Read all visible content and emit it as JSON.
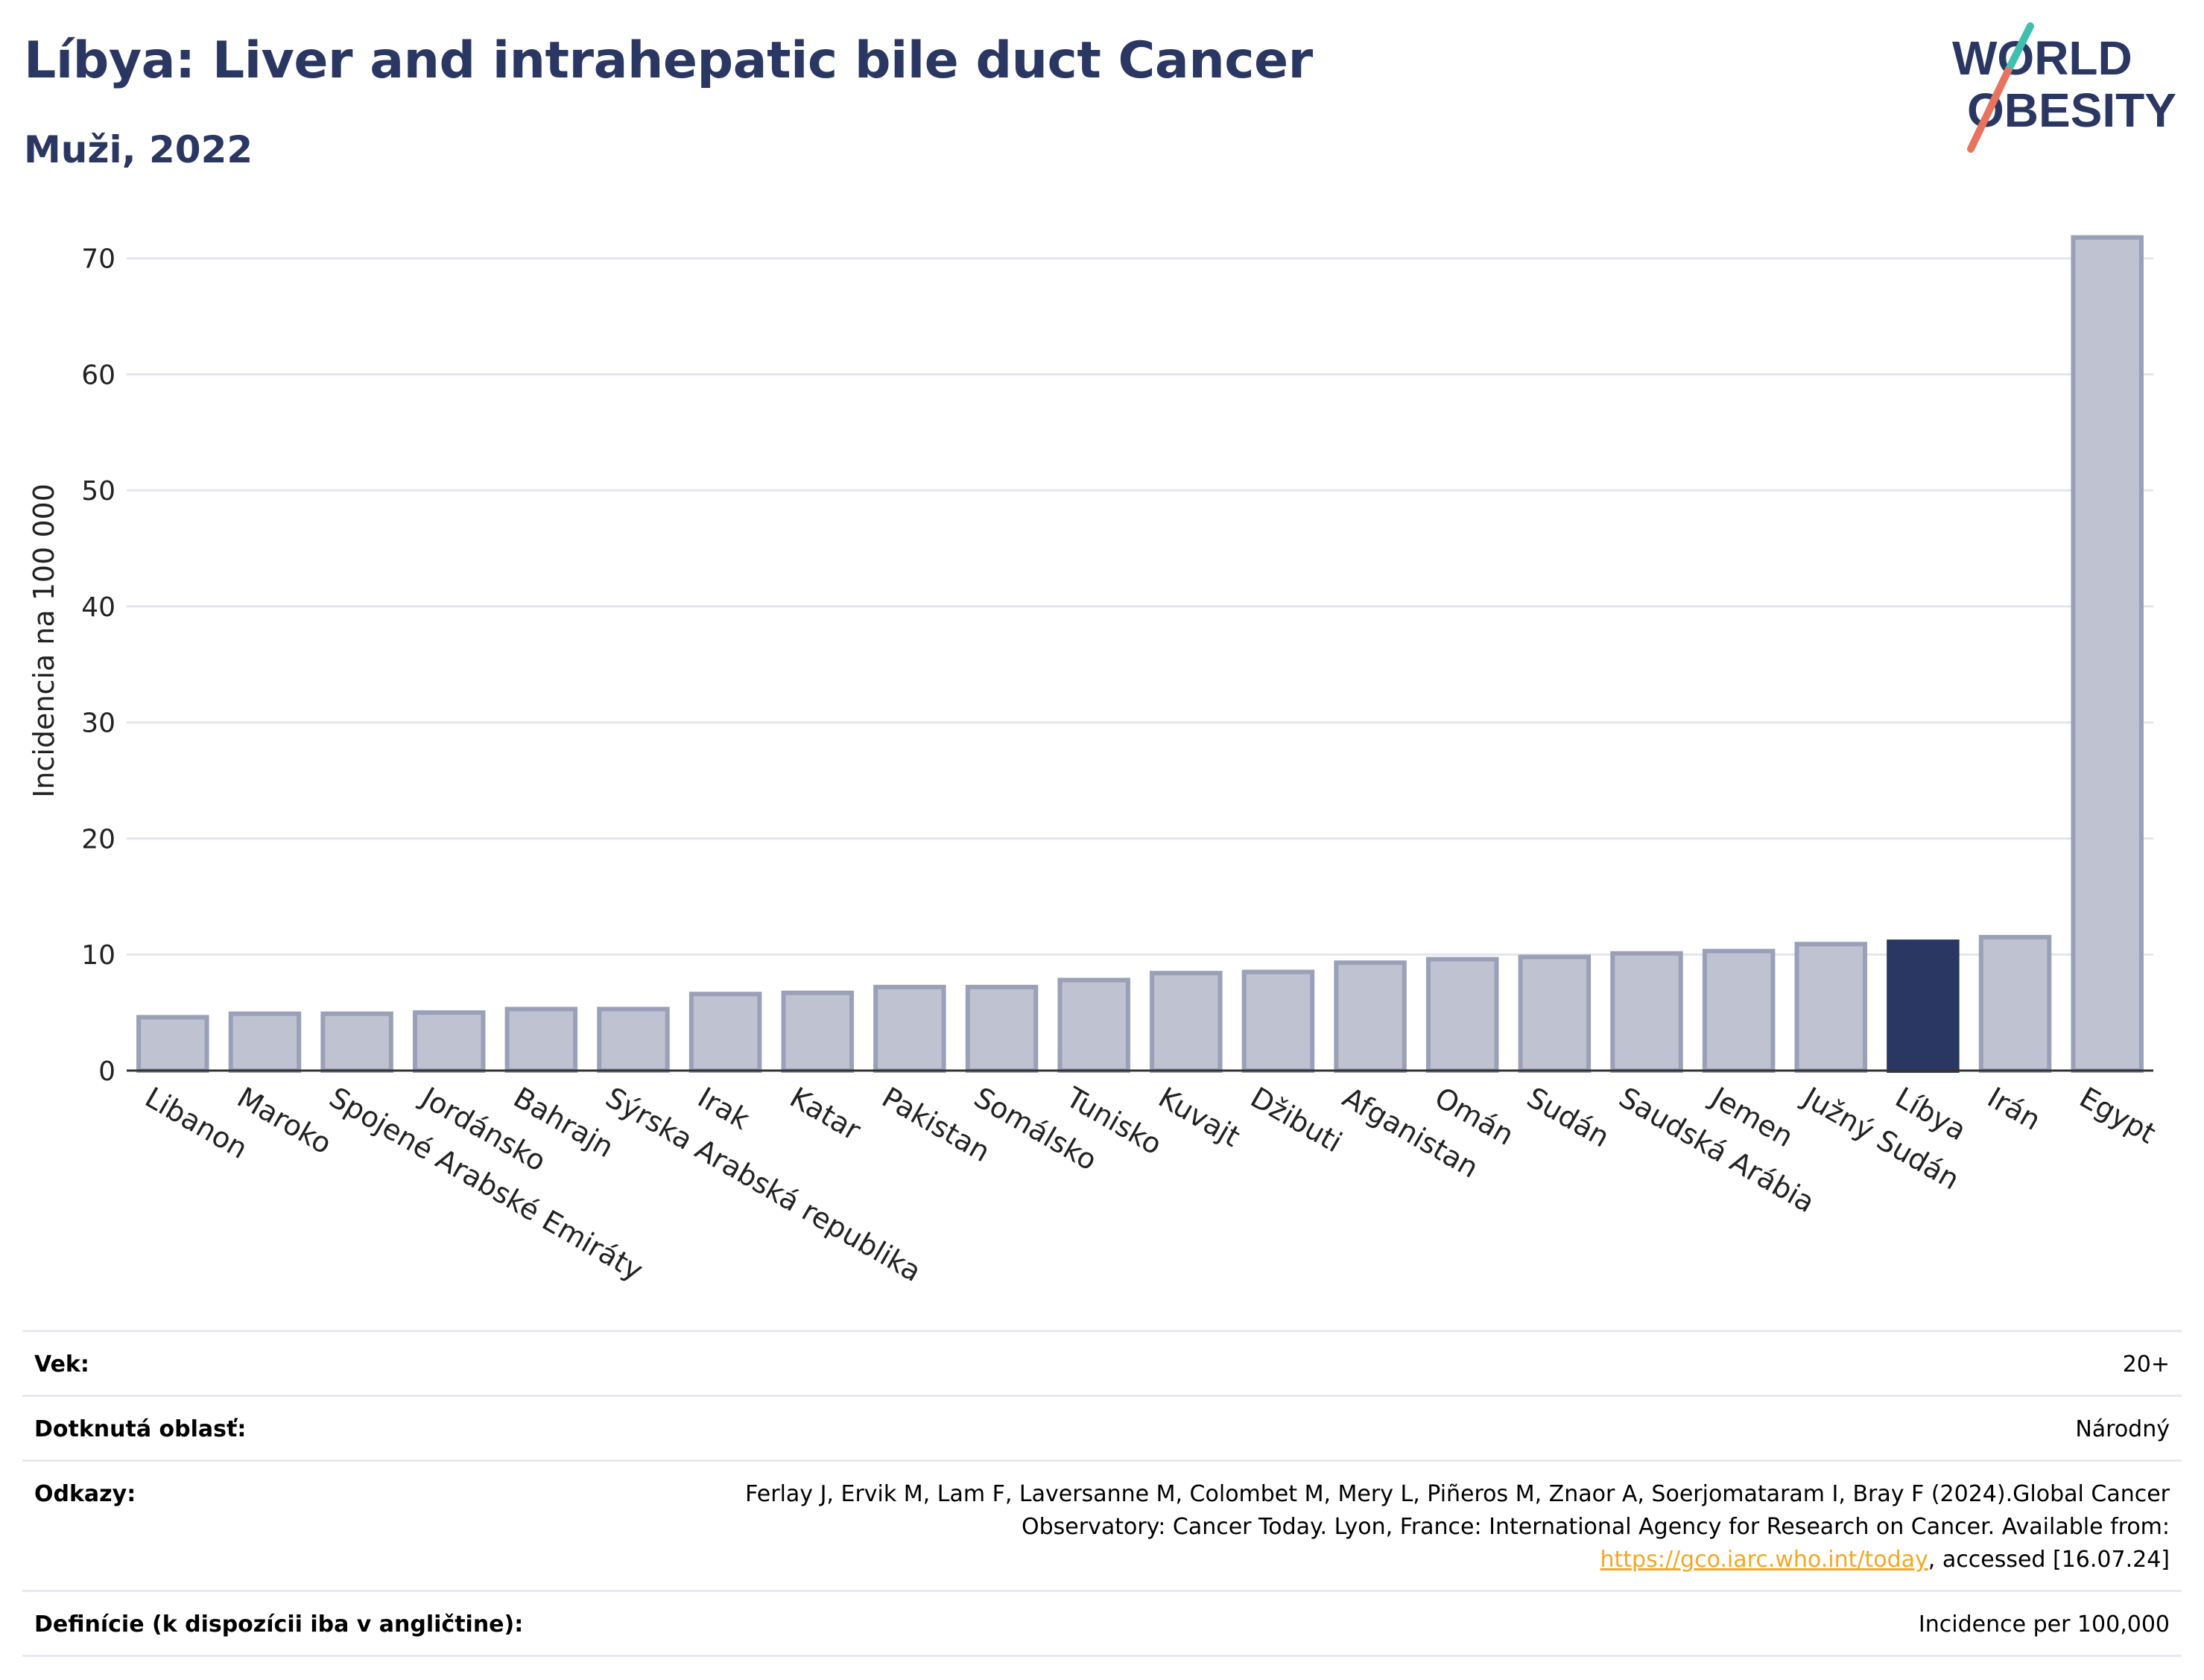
{
  "title": "Líbya: Liver and intrahepatic bile duct Cancer",
  "subtitle": "Muži, 2022",
  "logo": {
    "line1": "WORLD",
    "line2": "OBESITY"
  },
  "colors": {
    "bar": "#bfc2d0",
    "bar_stroke": "#9aa0b8",
    "highlight": "#2b3763",
    "grid": "#e4e6ee",
    "title": "#2b3763",
    "link": "#f5a623"
  },
  "chart_data": {
    "type": "bar",
    "title": "Líbya: Liver and intrahepatic bile duct Cancer",
    "subtitle": "Muži, 2022",
    "xlabel": "",
    "ylabel": "Incidencia na 100 000",
    "ylim": [
      0,
      73
    ],
    "yticks": [
      0,
      10,
      20,
      30,
      40,
      50,
      60,
      70
    ],
    "grid": true,
    "highlight": "Líbya",
    "categories": [
      "Libanon",
      "Maroko",
      "Spojené Arabské Emiráty",
      "Jordánsko",
      "Bahrajn",
      "Sýrska Arabská republika",
      "Irak",
      "Katar",
      "Pakistan",
      "Somálsko",
      "Tunisko",
      "Kuvajt",
      "Džibuti",
      "Afganistan",
      "Omán",
      "Sudán",
      "Saudská Arábia",
      "Jemen",
      "Južný Sudán",
      "Líbya",
      "Irán",
      "Egypt"
    ],
    "values": [
      4.6,
      4.9,
      4.9,
      5.0,
      5.3,
      5.3,
      6.6,
      6.7,
      7.2,
      7.2,
      7.8,
      8.4,
      8.5,
      9.3,
      9.6,
      9.8,
      10.1,
      10.3,
      10.9,
      11.1,
      11.5,
      71.8
    ]
  },
  "info": {
    "age_label": "Vek:",
    "age_value": "20+",
    "area_label": "Dotknutá oblasť:",
    "area_value": "Národný",
    "refs_label": "Odkazy:",
    "refs_text_1": "Ferlay J, Ervik M, Lam F, Laversanne M, Colombet M, Mery L, Piñeros M, Znaor A, Soerjomataram I, Bray F (2024).Global Cancer Observatory: Cancer Today. Lyon, France: International Agency for Research on Cancer. Available from: ",
    "refs_link": "https://gco.iarc.who.int/today",
    "refs_text_2": ", accessed [16.07.24]",
    "def_label": "Definície (k dispozícii iba v angličtine):",
    "def_value": "Incidence per 100,000"
  }
}
